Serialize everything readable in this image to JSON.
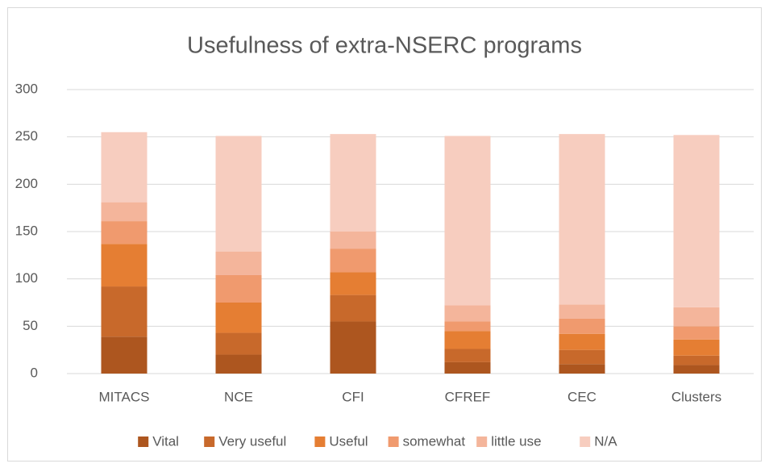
{
  "chart_data": {
    "type": "stacked_bar",
    "title": "Usefulness of extra-NSERC programs",
    "categories": [
      "MITACS",
      "NCE",
      "CFI",
      "CFREF",
      "CEC",
      "Clusters"
    ],
    "series": [
      {
        "name": "Vital",
        "color": "#ad561f",
        "values": [
          39,
          20,
          55,
          12,
          10,
          9
        ]
      },
      {
        "name": "Very useful",
        "color": "#c8692b",
        "values": [
          53,
          23,
          28,
          14,
          15,
          10
        ]
      },
      {
        "name": "Useful",
        "color": "#e57e33",
        "values": [
          45,
          32,
          24,
          19,
          17,
          17
        ]
      },
      {
        "name": "somewhat",
        "color": "#f09a6e",
        "values": [
          24,
          29,
          25,
          10,
          16,
          14
        ]
      },
      {
        "name": "little use",
        "color": "#f4b59b",
        "values": [
          20,
          25,
          18,
          17,
          15,
          20
        ]
      },
      {
        "name": "N/A",
        "color": "#f7cdbf",
        "values": [
          74,
          122,
          103,
          179,
          180,
          182
        ]
      }
    ],
    "ylim": [
      0,
      300
    ],
    "yticks": [
      0,
      50,
      100,
      150,
      200,
      250,
      300
    ],
    "grid": true,
    "legend": "bottom"
  }
}
